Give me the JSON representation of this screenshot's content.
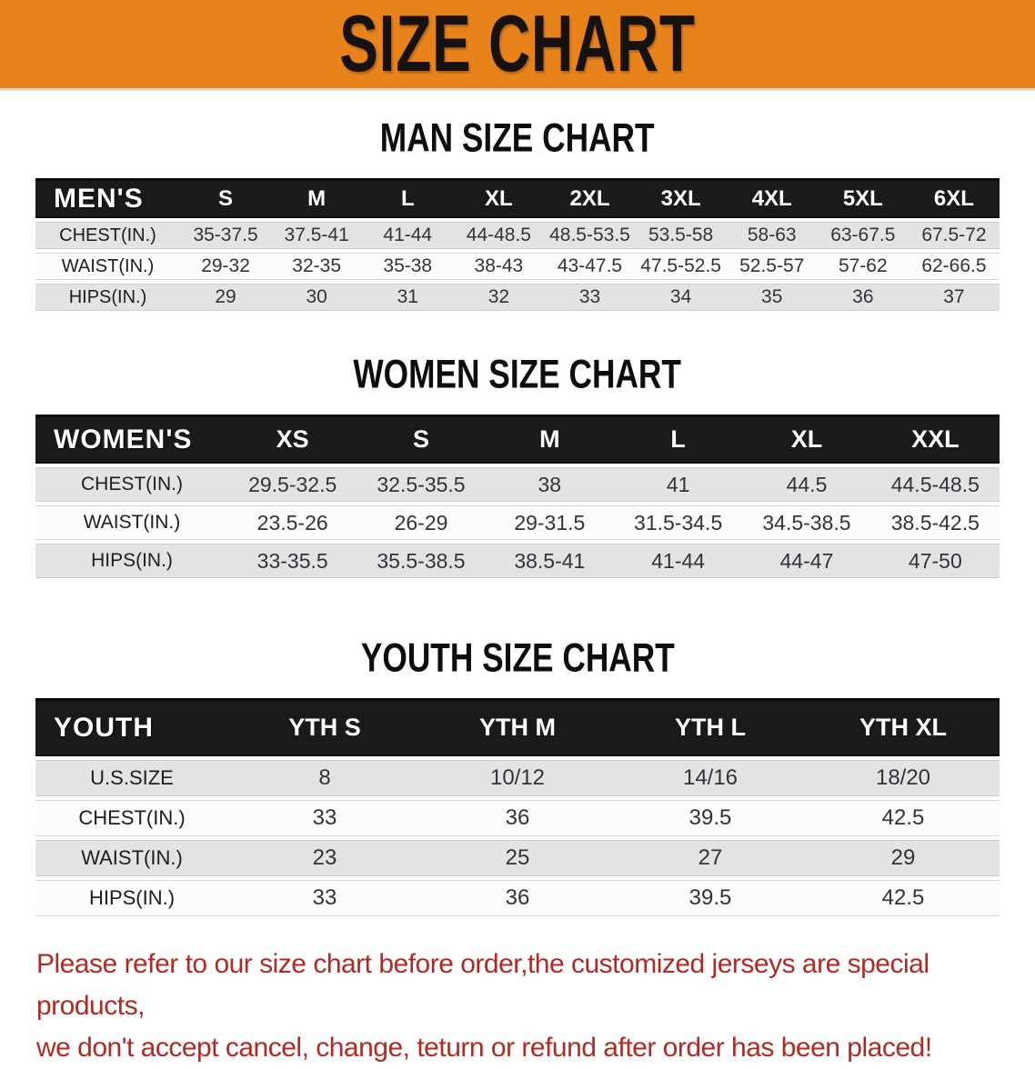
{
  "banner": {
    "title": "SIZE CHART"
  },
  "colors": {
    "banner_bg": "#E8831C",
    "header_bg": "#1A1A1A",
    "row_gray": "#E3E3E3",
    "disclaimer_red": "#B02A24"
  },
  "sections": [
    {
      "heading": "MAN SIZE CHART",
      "table": {
        "header_label": "MEN'S",
        "columns": [
          "S",
          "M",
          "L",
          "XL",
          "2XL",
          "3XL",
          "4XL",
          "5XL",
          "6XL"
        ],
        "rows": [
          {
            "label": "CHEST(IN.)",
            "values": [
              "35-37.5",
              "37.5-41",
              "41-44",
              "44-48.5",
              "48.5-53.5",
              "53.5-58",
              "58-63",
              "63-67.5",
              "67.5-72"
            ]
          },
          {
            "label": "WAIST(IN.)",
            "values": [
              "29-32",
              "32-35",
              "35-38",
              "38-43",
              "43-47.5",
              "47.5-52.5",
              "52.5-57",
              "57-62",
              "62-66.5"
            ]
          },
          {
            "label": "HIPS(IN.)",
            "values": [
              "29",
              "30",
              "31",
              "32",
              "33",
              "34",
              "35",
              "36",
              "37"
            ]
          }
        ]
      }
    },
    {
      "heading": "WOMEN SIZE CHART",
      "table": {
        "header_label": "WOMEN'S",
        "columns": [
          "XS",
          "S",
          "M",
          "L",
          "XL",
          "XXL"
        ],
        "rows": [
          {
            "label": "CHEST(IN.)",
            "values": [
              "29.5-32.5",
              "32.5-35.5",
              "38",
              "41",
              "44.5",
              "44.5-48.5"
            ]
          },
          {
            "label": "WAIST(IN.)",
            "values": [
              "23.5-26",
              "26-29",
              "29-31.5",
              "31.5-34.5",
              "34.5-38.5",
              "38.5-42.5"
            ]
          },
          {
            "label": "HIPS(IN.)",
            "values": [
              "33-35.5",
              "35.5-38.5",
              "38.5-41",
              "41-44",
              "44-47",
              "47-50"
            ]
          }
        ]
      }
    },
    {
      "heading": "YOUTH SIZE CHART",
      "table": {
        "header_label": "YOUTH",
        "columns": [
          "YTH S",
          "YTH M",
          "YTH L",
          "YTH XL"
        ],
        "rows": [
          {
            "label": "U.S.SIZE",
            "values": [
              "8",
              "10/12",
              "14/16",
              "18/20"
            ]
          },
          {
            "label": "CHEST(IN.)",
            "values": [
              "33",
              "36",
              "39.5",
              "42.5"
            ]
          },
          {
            "label": "WAIST(IN.)",
            "values": [
              "23",
              "25",
              "27",
              "29"
            ]
          },
          {
            "label": "HIPS(IN.)",
            "values": [
              "33",
              "36",
              "39.5",
              "42.5"
            ]
          }
        ]
      }
    }
  ],
  "disclaimer": {
    "line1": "Please refer to our size chart before order,the customized jerseys are special products,",
    "line2": "we don't accept cancel, change, teturn or refund after order has been placed!"
  }
}
